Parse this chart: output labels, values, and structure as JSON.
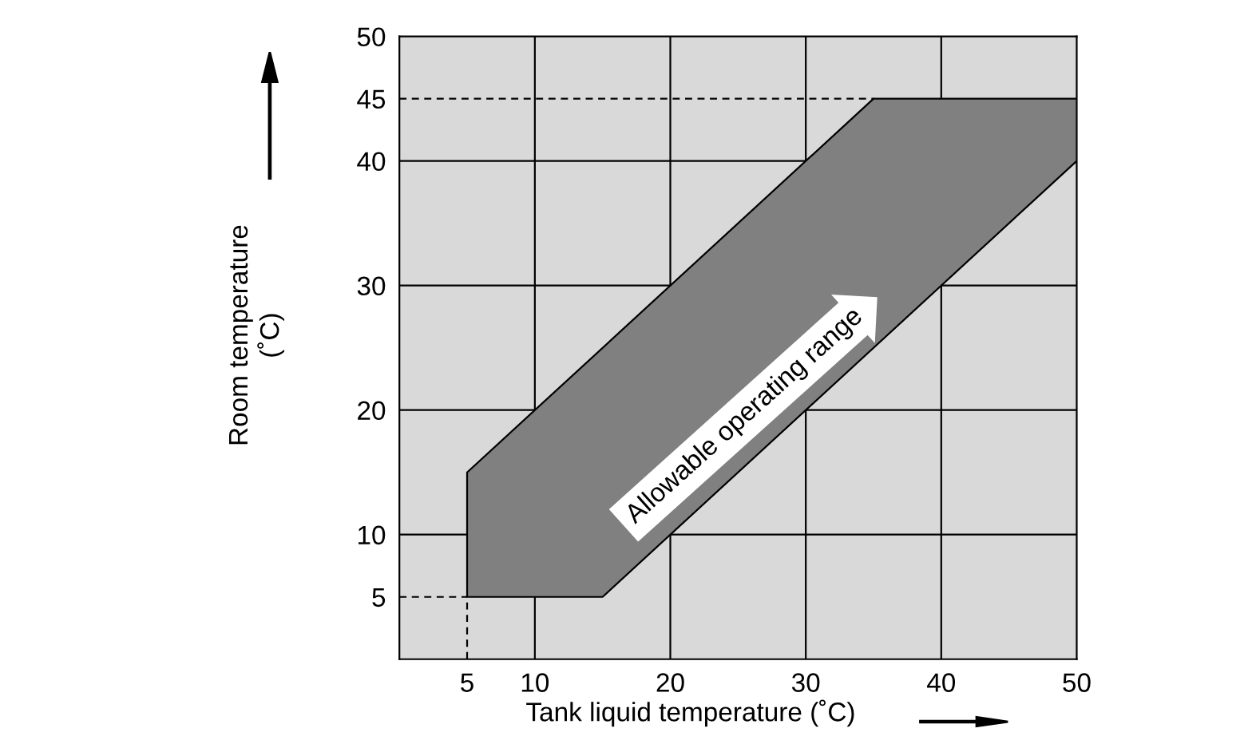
{
  "chart_data": {
    "type": "area",
    "xlabel": "Tank liquid temperature (˚C)",
    "ylabel": "Room temperature\n(˚C)",
    "series": [
      {
        "color": "#808080",
        "x": [
          5,
          5,
          35,
          50,
          50,
          15
        ],
        "values": [
          5,
          15,
          45,
          45,
          40,
          5
        ]
      }
    ],
    "xlim": [
      0,
      50
    ],
    "ylim": [
      0,
      50
    ],
    "xticks": [
      5,
      10,
      20,
      30,
      40,
      50
    ],
    "yticks": [
      5,
      10,
      20,
      30,
      40,
      45,
      50
    ],
    "ref_lines": [
      {
        "axis": "y",
        "value": 45,
        "line_style": "dashed",
        "color": "#000000"
      },
      {
        "axis": "y",
        "value": 5,
        "line_style": "dashed",
        "color": "#000000"
      },
      {
        "axis": "x",
        "value": 5,
        "line_style": "dashed",
        "color": "#000000"
      }
    ],
    "annotations": [
      "Allowable operating range"
    ],
    "grid": true
  }
}
